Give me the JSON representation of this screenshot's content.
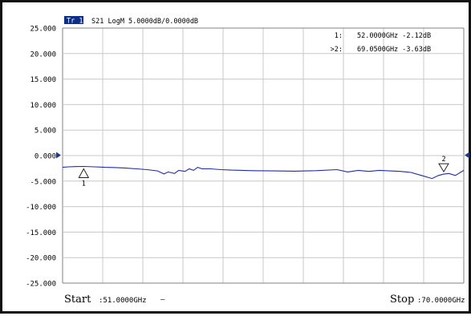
{
  "chart_data": {
    "type": "line",
    "trace_badge": "Tr 1",
    "trace_label": "S21 LogM 5.0000dB/0.0000dB",
    "y_ticks": [
      "25.000",
      "20.000",
      "15.000",
      "10.000",
      "5.000",
      "0.000",
      "-5.000",
      "-10.000",
      "-15.000",
      "-20.000",
      "-25.000"
    ],
    "ylim": [
      -25,
      25
    ],
    "xlim": [
      51,
      70
    ],
    "x_unit": "GHz",
    "y_unit": "dB",
    "reference_level": 0,
    "grid": true,
    "series": [
      {
        "color": "#1e2ba8",
        "x": [
          51.0,
          51.3,
          51.6,
          52.0,
          52.5,
          53.0,
          53.5,
          54.0,
          54.5,
          55.0,
          55.5,
          55.8,
          56.0,
          56.3,
          56.5,
          56.8,
          57.0,
          57.2,
          57.4,
          57.6,
          58.0,
          58.5,
          59.0,
          59.5,
          60.0,
          61.0,
          62.0,
          63.0,
          64.0,
          64.5,
          65.0,
          65.5,
          66.0,
          66.5,
          67.0,
          67.5,
          68.0,
          68.5,
          68.8,
          69.05,
          69.3,
          69.6,
          70.0
        ],
        "y": [
          -2.3,
          -2.2,
          -2.15,
          -2.12,
          -2.2,
          -2.3,
          -2.35,
          -2.45,
          -2.6,
          -2.75,
          -3.0,
          -3.6,
          -3.2,
          -3.5,
          -2.9,
          -3.1,
          -2.6,
          -2.9,
          -2.3,
          -2.6,
          -2.6,
          -2.75,
          -2.85,
          -2.9,
          -2.95,
          -3.0,
          -3.05,
          -2.95,
          -2.75,
          -3.2,
          -2.9,
          -3.1,
          -2.9,
          -3.0,
          -3.1,
          -3.3,
          -3.9,
          -4.5,
          -3.9,
          -3.63,
          -3.5,
          -3.9,
          -2.9
        ]
      }
    ],
    "markers": [
      {
        "id": "1",
        "x": 52.0,
        "y": -2.12,
        "readout_prefix": "1:",
        "readout": "52.0000GHz -2.12dB",
        "active": false
      },
      {
        "id": "2",
        "x": 69.05,
        "y": -3.63,
        "readout_prefix": ">2:",
        "readout": "69.0500GHz -3.63dB",
        "active": true
      }
    ],
    "start_label": "Start",
    "start_value": ":51.0000GHz",
    "start_suffix": "—",
    "stop_label": "Stop",
    "stop_value": ":70.0000GHz"
  },
  "colors": {
    "trace": "#1e2ba8",
    "grid": "#c8c8c8",
    "reference_arrow": "#1e3a8a",
    "badge_bg": "#0b2e8a",
    "badge_fg": "#ffffff"
  }
}
